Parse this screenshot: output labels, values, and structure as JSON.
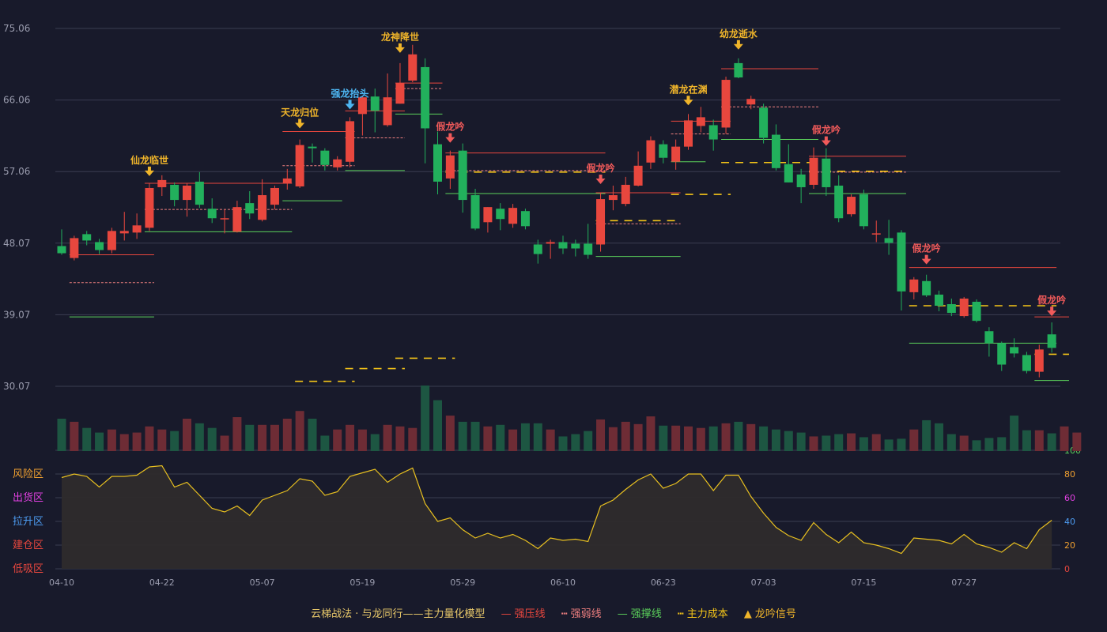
{
  "colors": {
    "background": "#181a2b",
    "grid": "#3a3d52",
    "axis_text": "#9a9cae",
    "up": "#e8473e",
    "down": "#22b05c",
    "vol_up": "#6e2c35",
    "vol_down": "#1d5642",
    "pressure": "#e8473e",
    "weak": "#f08080",
    "support": "#5bd15b",
    "cost": "#f5c518",
    "oscillator": "#e8c020",
    "osc_fill": "#2e2b2c",
    "signal_gold": "#f0b52a",
    "signal_blue": "#4db6f2",
    "signal_red": "#f05a5a"
  },
  "legend": {
    "title": "云梯战法 · 与龙同行——主力量化模型",
    "items": [
      {
        "symbol": "—",
        "label": "强压线",
        "color": "#e8473e"
      },
      {
        "symbol": "┅",
        "label": "强弱线",
        "color": "#f08080"
      },
      {
        "symbol": "—",
        "label": "强撑线",
        "color": "#5bd15b"
      },
      {
        "symbol": "┅",
        "label": "主力成本",
        "color": "#f5c518"
      },
      {
        "symbol": "▲",
        "label": "龙吟信号",
        "color": "#f0b52a"
      }
    ]
  },
  "chart_data": {
    "type": "candlestick",
    "price_axis": {
      "ticks": [
        "75.06",
        "66.06",
        "57.06",
        "48.07",
        "39.07",
        "30.07"
      ],
      "min": 30.07,
      "max": 75.06
    },
    "x_axis": {
      "ticks": [
        "04-10",
        "04-22",
        "05-07",
        "05-19",
        "05-29",
        "06-10",
        "06-23",
        "07-03",
        "07-15",
        "07-27"
      ],
      "tick_index": [
        0,
        8,
        16,
        24,
        32,
        40,
        48,
        56,
        64,
        72
      ]
    },
    "osc_axis": {
      "right_ticks": [
        {
          "v": 100,
          "label": "100",
          "color": "#5bd15b"
        },
        {
          "v": 80,
          "label": "80",
          "color": "#f0a030"
        },
        {
          "v": 60,
          "label": "60",
          "color": "#e040e0"
        },
        {
          "v": 40,
          "label": "40",
          "color": "#4d9cf2"
        },
        {
          "v": 20,
          "label": "20",
          "color": "#f0a030"
        },
        {
          "v": 0,
          "label": "0",
          "color": "#e8473e"
        }
      ],
      "zones": [
        {
          "v": 80,
          "label": "风险区",
          "color": "#f0a030"
        },
        {
          "v": 60,
          "label": "出货区",
          "color": "#e040e0"
        },
        {
          "v": 40,
          "label": "拉升区",
          "color": "#4d9cf2"
        },
        {
          "v": 20,
          "label": "建仓区",
          "color": "#e8473e"
        },
        {
          "v": 0,
          "label": "低吸区",
          "color": "#e8473e"
        }
      ]
    },
    "candles": [
      [
        47.7,
        46.8,
        49.8,
        46.6
      ],
      [
        46.2,
        48.7,
        49.0,
        45.9
      ],
      [
        49.2,
        48.4,
        49.6,
        47.8
      ],
      [
        48.2,
        47.2,
        48.6,
        46.7
      ],
      [
        47.2,
        49.6,
        50.0,
        46.8
      ],
      [
        49.3,
        49.6,
        52.0,
        48.4
      ],
      [
        49.4,
        50.3,
        51.8,
        48.6
      ],
      [
        50.0,
        55.0,
        55.6,
        49.6
      ],
      [
        55.1,
        56.0,
        56.6,
        54.0
      ],
      [
        55.4,
        53.5,
        55.7,
        52.7
      ],
      [
        53.5,
        55.3,
        55.6,
        51.4
      ],
      [
        55.8,
        52.9,
        57.0,
        52.5
      ],
      [
        52.4,
        51.2,
        53.7,
        50.6
      ],
      [
        51.1,
        51.2,
        52.3,
        49.3
      ],
      [
        49.5,
        52.6,
        53.4,
        49.4
      ],
      [
        53.1,
        51.8,
        54.6,
        51.1
      ],
      [
        51.0,
        54.1,
        56.1,
        50.8
      ],
      [
        52.9,
        55.0,
        55.3,
        52.3
      ],
      [
        55.6,
        56.2,
        57.4,
        54.8
      ],
      [
        55.2,
        60.4,
        61.1,
        55.0
      ],
      [
        60.2,
        60.0,
        60.6,
        58.2
      ],
      [
        59.7,
        57.9,
        60.0,
        57.2
      ],
      [
        57.6,
        58.6,
        59.0,
        57.2
      ],
      [
        58.3,
        63.4,
        63.9,
        57.6
      ],
      [
        64.3,
        66.4,
        66.6,
        61.6
      ],
      [
        66.5,
        64.7,
        67.5,
        62.0
      ],
      [
        62.9,
        66.4,
        69.4,
        62.7
      ],
      [
        65.6,
        68.2,
        70.7,
        65.6
      ],
      [
        68.5,
        71.8,
        73.0,
        68.3
      ],
      [
        70.2,
        62.5,
        71.3,
        58.1
      ],
      [
        60.5,
        55.8,
        62.1,
        54.2
      ],
      [
        56.2,
        59.1,
        59.7,
        54.9
      ],
      [
        59.7,
        53.5,
        60.6,
        51.9
      ],
      [
        54.1,
        49.9,
        54.9,
        49.7
      ],
      [
        50.7,
        52.6,
        52.6,
        49.4
      ],
      [
        52.4,
        51.1,
        53.1,
        49.7
      ],
      [
        50.5,
        52.5,
        53.0,
        50.0
      ],
      [
        52.1,
        50.2,
        52.4,
        49.8
      ],
      [
        47.9,
        46.7,
        48.5,
        45.5
      ],
      [
        48.0,
        48.2,
        48.5,
        46.1
      ],
      [
        48.2,
        47.4,
        49.0,
        46.7
      ],
      [
        48.0,
        47.4,
        48.5,
        46.4
      ],
      [
        48.0,
        46.6,
        50.5,
        46.1
      ],
      [
        47.9,
        53.6,
        54.4,
        47.0
      ],
      [
        53.5,
        54.1,
        55.3,
        52.2
      ],
      [
        53.0,
        55.4,
        56.4,
        52.7
      ],
      [
        55.3,
        57.8,
        59.6,
        55.2
      ],
      [
        58.2,
        61.0,
        61.5,
        57.4
      ],
      [
        60.5,
        58.8,
        61.0,
        58.1
      ],
      [
        58.3,
        60.2,
        61.1,
        57.3
      ],
      [
        60.2,
        63.5,
        64.3,
        59.8
      ],
      [
        62.8,
        63.9,
        65.2,
        62.0
      ],
      [
        62.9,
        61.1,
        63.6,
        59.7
      ],
      [
        62.6,
        68.6,
        69.0,
        61.8
      ],
      [
        70.7,
        68.9,
        71.3,
        68.8
      ],
      [
        65.5,
        66.2,
        66.6,
        64.9
      ],
      [
        65.1,
        61.3,
        65.6,
        60.6
      ],
      [
        61.7,
        57.5,
        63.0,
        57.2
      ],
      [
        58.0,
        55.7,
        60.5,
        55.7
      ],
      [
        56.7,
        55.1,
        57.4,
        53.1
      ],
      [
        55.4,
        58.8,
        60.1,
        54.9
      ],
      [
        58.7,
        55.1,
        60.0,
        54.0
      ],
      [
        55.3,
        51.2,
        56.6,
        50.7
      ],
      [
        51.7,
        53.9,
        54.2,
        51.4
      ],
      [
        54.2,
        50.2,
        54.8,
        49.8
      ],
      [
        49.2,
        49.3,
        50.9,
        48.2
      ],
      [
        48.7,
        48.1,
        51.0,
        46.6
      ],
      [
        49.4,
        42.0,
        49.7,
        39.6
      ],
      [
        41.9,
        43.5,
        43.8,
        41.0
      ],
      [
        43.3,
        41.5,
        44.1,
        41.3
      ],
      [
        41.6,
        40.2,
        42.1,
        39.5
      ],
      [
        40.4,
        39.3,
        41.1,
        38.9
      ],
      [
        38.9,
        41.1,
        41.3,
        38.7
      ],
      [
        40.7,
        38.3,
        41.0,
        38.1
      ],
      [
        37.0,
        35.5,
        37.5,
        33.8
      ],
      [
        35.5,
        32.8,
        35.7,
        32.0
      ],
      [
        35.0,
        34.2,
        36.1,
        33.7
      ],
      [
        34.0,
        32.0,
        34.4,
        31.7
      ],
      [
        31.9,
        34.7,
        35.3,
        31.2
      ],
      [
        36.6,
        34.9,
        38.1,
        34.3
      ]
    ],
    "volumes": [
      42,
      38,
      30,
      24,
      28,
      22,
      24,
      32,
      28,
      26,
      42,
      36,
      30,
      20,
      44,
      34,
      34,
      34,
      42,
      52,
      42,
      20,
      28,
      34,
      28,
      22,
      34,
      32,
      30,
      85,
      66,
      46,
      38,
      38,
      32,
      34,
      28,
      36,
      36,
      28,
      19,
      22,
      26,
      41,
      31,
      38,
      35,
      45,
      33,
      33,
      32,
      30,
      32,
      36,
      38,
      35,
      32,
      28,
      26,
      24,
      19,
      20,
      22,
      23,
      18,
      22,
      15,
      16,
      28,
      40,
      36,
      22,
      20,
      14,
      17,
      18,
      46,
      27,
      27,
      23,
      32,
      24
    ],
    "osc": [
      77,
      80,
      78,
      69,
      78,
      78,
      79,
      86,
      87,
      69,
      73,
      62,
      51,
      48,
      53,
      45,
      58,
      62,
      66,
      76,
      74,
      62,
      65,
      78,
      81,
      84,
      73,
      80,
      85,
      55,
      40,
      43,
      33,
      26,
      30,
      26,
      29,
      24,
      17,
      26,
      24,
      25,
      23,
      53,
      58,
      67,
      75,
      80,
      68,
      72,
      80,
      80,
      66,
      79,
      79,
      61,
      47,
      35,
      28,
      24,
      39,
      29,
      22,
      31,
      22,
      20,
      17,
      13,
      26,
      25,
      24,
      21,
      29,
      21,
      18,
      14,
      22,
      17,
      33,
      41
    ],
    "pressure_lines": [
      [
        1,
        7,
        46.6
      ],
      [
        7,
        18,
        55.6
      ],
      [
        18,
        23,
        62.1
      ],
      [
        23,
        27,
        64.7
      ],
      [
        27,
        30,
        68.2
      ],
      [
        31,
        43,
        59.4
      ],
      [
        43,
        49,
        54.4
      ],
      [
        49,
        53,
        63.4
      ],
      [
        53,
        60,
        70.0
      ],
      [
        60,
        67,
        59.0
      ],
      [
        68,
        79,
        45.0
      ],
      [
        78,
        80,
        38.8
      ]
    ],
    "weak_lines": [
      [
        1,
        7,
        43.1
      ],
      [
        7,
        18,
        52.3
      ],
      [
        18,
        23,
        57.8
      ],
      [
        23,
        27,
        61.3
      ],
      [
        27,
        30,
        67.5
      ],
      [
        31,
        43,
        57.2
      ],
      [
        43,
        49,
        50.5
      ],
      [
        49,
        53,
        61.8
      ],
      [
        53,
        60,
        65.2
      ],
      [
        60,
        67,
        57.0
      ]
    ],
    "support_lines": [
      [
        1,
        7,
        38.8
      ],
      [
        7,
        18,
        49.5
      ],
      [
        18,
        22,
        53.4
      ],
      [
        23,
        27,
        57.2
      ],
      [
        27,
        30,
        64.3
      ],
      [
        31,
        43,
        54.3
      ],
      [
        43,
        49,
        46.4
      ],
      [
        49,
        51,
        58.3
      ],
      [
        53,
        60,
        61.1
      ],
      [
        60,
        67,
        54.3
      ],
      [
        68,
        79,
        35.5
      ],
      [
        78,
        80,
        30.8
      ]
    ],
    "cost_lines": [
      [
        19,
        23,
        30.7
      ],
      [
        23,
        27,
        32.3
      ],
      [
        27,
        31,
        33.6
      ],
      [
        31,
        43,
        57.0
      ],
      [
        43,
        49,
        50.9
      ],
      [
        49,
        53,
        54.2
      ],
      [
        53,
        60,
        58.2
      ],
      [
        60,
        67,
        57.1
      ],
      [
        68,
        79,
        40.2
      ],
      [
        78,
        80,
        34.1
      ]
    ],
    "signals": [
      {
        "i": 7,
        "label": "仙龙临世",
        "kind": "gold",
        "price": 56.3
      },
      {
        "i": 19,
        "label": "天龙归位",
        "kind": "gold",
        "price": 62.3
      },
      {
        "i": 23,
        "label": "强龙抬头",
        "kind": "blue",
        "price": 64.7
      },
      {
        "i": 27,
        "label": "龙神降世",
        "kind": "gold",
        "price": 71.8
      },
      {
        "i": 31,
        "label": "假龙吟",
        "kind": "red",
        "price": 60.5
      },
      {
        "i": 43,
        "label": "假龙吟",
        "kind": "red",
        "price": 55.3
      },
      {
        "i": 50,
        "label": "潜龙在渊",
        "kind": "gold",
        "price": 65.2
      },
      {
        "i": 54,
        "label": "幼龙逝水",
        "kind": "gold",
        "price": 72.2
      },
      {
        "i": 61,
        "label": "假龙吟",
        "kind": "red",
        "price": 60.1
      },
      {
        "i": 69,
        "label": "假龙吟",
        "kind": "red",
        "price": 45.2
      },
      {
        "i": 79,
        "label": "假龙吟",
        "kind": "red",
        "price": 38.7
      }
    ]
  }
}
